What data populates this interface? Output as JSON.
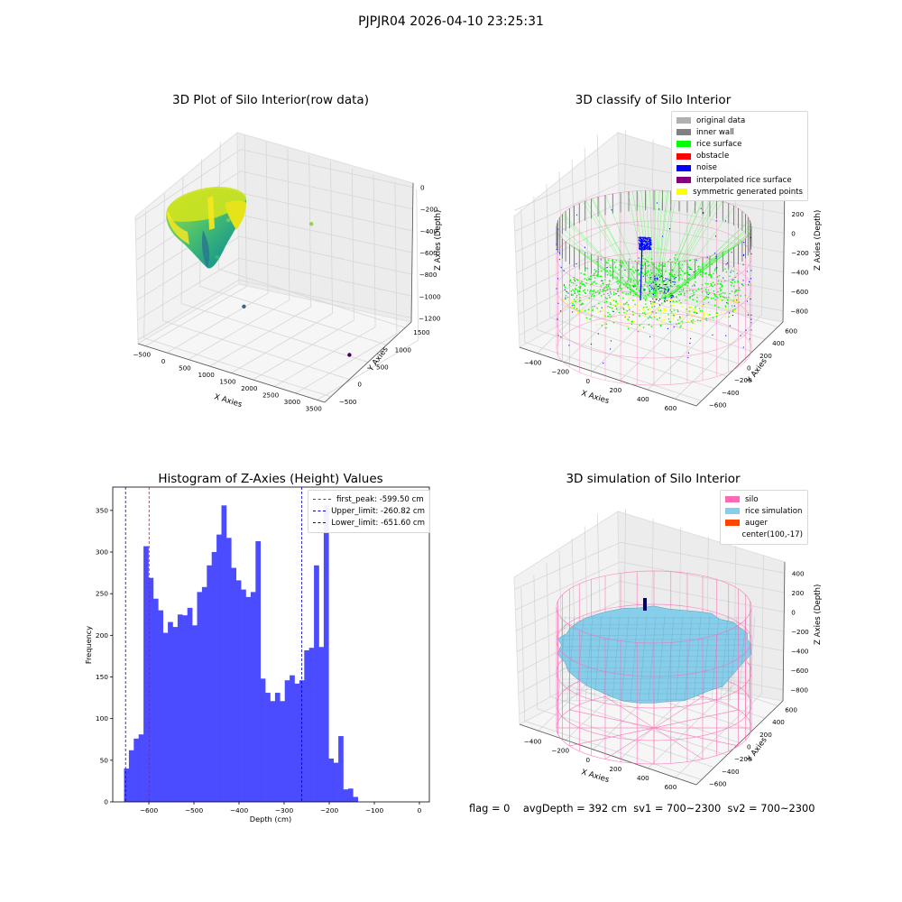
{
  "suptitle": "PJPJR04 2026-04-10 23:25:31",
  "footer_text": "flag = 0    avgDepth = 392 cm  sv1 = 700~2300  sv2 = 700~2300",
  "chart_data": [
    {
      "type": "scatter3d",
      "title": "3D Plot of Silo Interior(row data)",
      "xlabel": "X Axies",
      "ylabel": "Y Axies",
      "zlabel": "Z Axies (Depth)",
      "x_ticks": [
        "−500",
        "0",
        "500",
        "1000",
        "1500",
        "2000",
        "2500",
        "3000",
        "3500"
      ],
      "y_ticks": [
        "−500",
        "0",
        "500",
        "1000",
        "1500"
      ],
      "z_ticks": [
        "−1200",
        "−1000",
        "−800",
        "−600",
        "−400",
        "−200",
        "0"
      ],
      "xlim": [
        -650,
        3550
      ],
      "ylim": [
        -650,
        1550
      ],
      "zlim": [
        -1250,
        50
      ],
      "outlier_points": [
        {
          "x": 470,
          "y": 380,
          "z": -300,
          "color": "#6ccd5a"
        },
        {
          "x": 1700,
          "y": 1100,
          "z": -420,
          "color": "#8fd744"
        },
        {
          "x": 330,
          "y": 250,
          "z": -620,
          "color": "#35b779"
        },
        {
          "x": 980,
          "y": 200,
          "z": -980,
          "color": "#31688e"
        },
        {
          "x": 3300,
          "y": 260,
          "z": -1150,
          "color": "#440154"
        }
      ],
      "colormap": "viridis"
    },
    {
      "type": "scatter3d",
      "title": "3D classify of Silo Interior",
      "xlabel": "X Axies",
      "ylabel": "Y Axies",
      "zlabel": "Z Axies (Depth)",
      "x_ticks": [
        "−400",
        "−200",
        "0",
        "200",
        "400",
        "600"
      ],
      "y_ticks": [
        "−600",
        "−400",
        "−200",
        "0",
        "200",
        "400",
        "600"
      ],
      "z_ticks": [
        "−800",
        "−600",
        "−400",
        "−200",
        "0",
        "200",
        "400"
      ],
      "xlim": [
        -500,
        700
      ],
      "ylim": [
        -700,
        700
      ],
      "zlim": [
        -900,
        450
      ],
      "legend": [
        {
          "label": "original data",
          "color": "#b0b0b0"
        },
        {
          "label": "inner wall",
          "color": "#808080"
        },
        {
          "label": "rice surface",
          "color": "#00ff00"
        },
        {
          "label": "obstacle",
          "color": "#ff0000"
        },
        {
          "label": "noise",
          "color": "#0000ff"
        },
        {
          "label": "interpolated rice surface",
          "color": "#800080"
        },
        {
          "label": "symmetric generated points",
          "color": "#ffff00"
        }
      ],
      "silo_color": "#ff69b4"
    },
    {
      "type": "bar",
      "title": "Histogram of Z-Axies (Height) Values",
      "xlabel": "Depth (cm)",
      "ylabel": "Frequency",
      "xlim": [
        -680,
        22
      ],
      "ylim": [
        0,
        378
      ],
      "x_ticks": [
        -600,
        -500,
        -400,
        -300,
        -200,
        -100,
        0
      ],
      "y_ticks": [
        0,
        50,
        100,
        150,
        200,
        250,
        300,
        350
      ],
      "bin_start": -655,
      "bin_width": 10.8,
      "values": [
        40,
        62,
        76,
        81,
        307,
        269,
        244,
        230,
        203,
        216,
        210,
        225,
        224,
        233,
        212,
        252,
        258,
        284,
        300,
        321,
        356,
        317,
        281,
        266,
        255,
        246,
        252,
        313,
        148,
        131,
        121,
        131,
        121,
        146,
        152,
        142,
        146,
        182,
        185,
        284,
        186,
        356,
        52,
        47,
        79,
        15,
        16,
        6
      ],
      "bar_color": "#4b4bff",
      "vlines": [
        {
          "label": "first_peak: -599.50 cm",
          "x": -599.5,
          "color": "#ff0000"
        },
        {
          "label": "Upper_limit: -260.82 cm",
          "x": -260.82,
          "color": "#0000c8"
        },
        {
          "label": "Lower_limit: -651.60 cm",
          "x": -651.6,
          "color": "#0000c8"
        }
      ]
    },
    {
      "type": "surface3d",
      "title": "3D simulation of Silo Interior",
      "xlabel": "X Axies",
      "ylabel": "Y Axies",
      "zlabel": "Z Axies (Depth)",
      "x_ticks": [
        "−400",
        "−200",
        "0",
        "200",
        "400",
        "600"
      ],
      "y_ticks": [
        "−600",
        "−400",
        "−200",
        "0",
        "200",
        "400",
        "600"
      ],
      "z_ticks": [
        "−800",
        "−600",
        "−400",
        "−200",
        "0",
        "200",
        "400"
      ],
      "xlim": [
        -500,
        700
      ],
      "ylim": [
        -700,
        700
      ],
      "zlim": [
        -900,
        450
      ],
      "legend": [
        {
          "label": "silo",
          "color": "#ff69b4"
        },
        {
          "label": "rice simulation",
          "color": "#87ceeb"
        },
        {
          "label": "auger",
          "color": "#ff4500"
        },
        {
          "label": "center(100,-17)",
          "color": ""
        }
      ]
    }
  ]
}
